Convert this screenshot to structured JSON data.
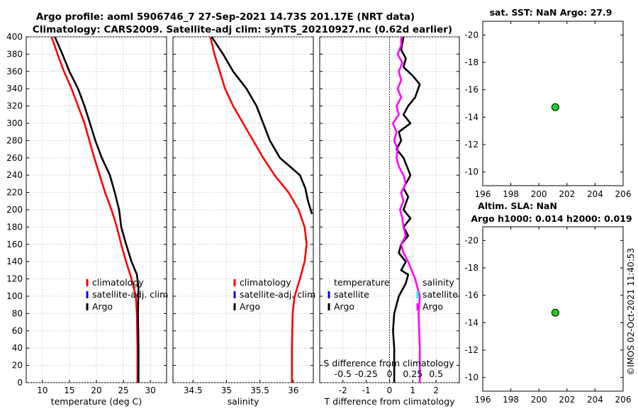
{
  "header": {
    "title_line1": "Argo profile: aoml 5906746_7 27-Sep-2021 14.73S 201.17E (NRT data)",
    "title_line2": "Climatology: CARS2009. Satellite-adj clim: synTS_20210927.nc (0.62d earlier)",
    "watermark": "©IMOS 02-Oct-2021 11:40:53"
  },
  "colors": {
    "argo": "#000000",
    "climatology": "#ff0000",
    "satellite": "#0000ff",
    "salinity_diff": "#ff00ff",
    "salinity_sat": "#00ffff",
    "marker": "#22cc22",
    "grid": "#c8c8c8"
  },
  "chart_data": [
    {
      "id": "temp",
      "type": "line",
      "xlabel": "temperature (deg C)",
      "ylabel": "",
      "xlim": [
        7,
        33
      ],
      "ylim": [
        400,
        0
      ],
      "xticks": [
        10,
        15,
        20,
        25,
        30
      ],
      "yticks": [
        0,
        20,
        40,
        60,
        80,
        100,
        120,
        140,
        160,
        180,
        200,
        220,
        240,
        260,
        280,
        300,
        320,
        340,
        360,
        380,
        400
      ],
      "show_y_labels": true,
      "legend": [
        {
          "label": "climatology",
          "color": "#ff0000"
        },
        {
          "label": "satellite-adj. clim",
          "color": "#0000ff"
        },
        {
          "label": "Argo",
          "color": "#000000"
        }
      ],
      "series": [
        {
          "name": "climatology",
          "color": "#ff0000",
          "points": [
            [
              27.6,
              0
            ],
            [
              27.6,
              40
            ],
            [
              27.5,
              80
            ],
            [
              27.3,
              100
            ],
            [
              26.5,
              120
            ],
            [
              25.5,
              140
            ],
            [
              24.6,
              160
            ],
            [
              23.8,
              180
            ],
            [
              22.8,
              200
            ],
            [
              21.6,
              220
            ],
            [
              20.6,
              240
            ],
            [
              19.6,
              260
            ],
            [
              18.7,
              280
            ],
            [
              17.8,
              300
            ],
            [
              16.6,
              320
            ],
            [
              15.4,
              340
            ],
            [
              14.0,
              360
            ],
            [
              12.8,
              380
            ],
            [
              11.7,
              400
            ]
          ]
        },
        {
          "name": "Argo",
          "color": "#000000",
          "points": [
            [
              27.8,
              0
            ],
            [
              27.8,
              40
            ],
            [
              27.7,
              80
            ],
            [
              27.8,
              110
            ],
            [
              27.5,
              125
            ],
            [
              26.5,
              140
            ],
            [
              25.5,
              160
            ],
            [
              24.6,
              180
            ],
            [
              24.2,
              200
            ],
            [
              23.4,
              220
            ],
            [
              22.5,
              240
            ],
            [
              21.0,
              260
            ],
            [
              19.8,
              280
            ],
            [
              18.8,
              300
            ],
            [
              17.8,
              320
            ],
            [
              16.6,
              340
            ],
            [
              15.0,
              360
            ],
            [
              13.7,
              380
            ],
            [
              12.3,
              400
            ]
          ]
        }
      ]
    },
    {
      "id": "sal",
      "type": "line",
      "xlabel": "salinity",
      "ylabel": "",
      "xlim": [
        34.2,
        36.3
      ],
      "ylim": [
        400,
        0
      ],
      "xticks": [
        34.5,
        35,
        35.5,
        36
      ],
      "xtick_labels": [
        "34.5",
        "35",
        "35.5",
        "36"
      ],
      "yticks": [
        0,
        20,
        40,
        60,
        80,
        100,
        120,
        140,
        160,
        180,
        200,
        220,
        240,
        260,
        280,
        300,
        320,
        340,
        360,
        380,
        400
      ],
      "show_y_labels": false,
      "legend": [
        {
          "label": "climatology",
          "color": "#ff0000"
        },
        {
          "label": "satellite-adj. clim",
          "color": "#0000ff"
        },
        {
          "label": "Argo",
          "color": "#000000"
        }
      ],
      "series": [
        {
          "name": "climatology",
          "color": "#ff0000",
          "points": [
            [
              35.98,
              0
            ],
            [
              35.98,
              40
            ],
            [
              35.99,
              80
            ],
            [
              36.02,
              100
            ],
            [
              36.1,
              120
            ],
            [
              36.17,
              140
            ],
            [
              36.2,
              160
            ],
            [
              36.17,
              180
            ],
            [
              36.08,
              200
            ],
            [
              35.93,
              220
            ],
            [
              35.72,
              240
            ],
            [
              35.55,
              260
            ],
            [
              35.4,
              280
            ],
            [
              35.25,
              300
            ],
            [
              35.1,
              320
            ],
            [
              34.98,
              340
            ],
            [
              34.9,
              360
            ],
            [
              34.82,
              380
            ],
            [
              34.76,
              400
            ]
          ]
        },
        {
          "name": "Argo",
          "color": "#000000",
          "points": [
            [
              36.28,
              195
            ],
            [
              36.22,
              210
            ],
            [
              36.18,
              225
            ],
            [
              36.1,
              240
            ],
            [
              35.95,
              250
            ],
            [
              35.8,
              260
            ],
            [
              35.65,
              280
            ],
            [
              35.55,
              300
            ],
            [
              35.45,
              320
            ],
            [
              35.3,
              340
            ],
            [
              35.1,
              360
            ],
            [
              34.95,
              380
            ],
            [
              34.78,
              400
            ]
          ]
        }
      ]
    },
    {
      "id": "diff",
      "type": "line",
      "xlabel": "T difference from climatology",
      "ylabel": "",
      "xlim": [
        -3,
        3
      ],
      "ylim": [
        400,
        0
      ],
      "xticks": [
        -2,
        -1,
        0,
        1,
        2
      ],
      "xtick_labels": [
        "-2",
        "-1",
        "0",
        "1",
        "2"
      ],
      "yticks": [
        0,
        20,
        40,
        60,
        80,
        100,
        120,
        140,
        160,
        180,
        200,
        220,
        240,
        260,
        280,
        300,
        320,
        340,
        360,
        380,
        400
      ],
      "show_y_labels": false,
      "secondary_label": "S difference from climatology",
      "secondary_ticks": [
        {
          "x": -2,
          "label": "-0.5"
        },
        {
          "x": -1,
          "label": "-0.25"
        },
        {
          "x": 0,
          "label": "0"
        },
        {
          "x": 1,
          "label": "0.25"
        },
        {
          "x": 2,
          "label": "0.5"
        }
      ],
      "legend": [
        {
          "label": "temperature",
          "color": "none"
        },
        {
          "label": "satellite",
          "color": "#0000ff"
        },
        {
          "label": "Argo",
          "color": "#000000"
        }
      ],
      "legend2": [
        {
          "label": "salinity",
          "color": "none"
        },
        {
          "label": "satellite",
          "color": "#00ffff"
        },
        {
          "label": "Argo",
          "color": "#ff00ff"
        }
      ],
      "series": [
        {
          "name": "T Argo",
          "color": "#000000",
          "points": [
            [
              0.2,
              0
            ],
            [
              0.2,
              40
            ],
            [
              0.15,
              60
            ],
            [
              0.2,
              80
            ],
            [
              0.4,
              100
            ],
            [
              0.7,
              115
            ],
            [
              0.8,
              125
            ],
            [
              0.5,
              130
            ],
            [
              0.7,
              140
            ],
            [
              0.4,
              150
            ],
            [
              0.5,
              160
            ],
            [
              0.8,
              170
            ],
            [
              0.6,
              180
            ],
            [
              0.9,
              190
            ],
            [
              0.6,
              200
            ],
            [
              0.8,
              215
            ],
            [
              0.6,
              225
            ],
            [
              0.9,
              240
            ],
            [
              0.6,
              260
            ],
            [
              0.3,
              270
            ],
            [
              0.5,
              280
            ],
            [
              0.4,
              290
            ],
            [
              0.9,
              300
            ],
            [
              0.6,
              310
            ],
            [
              0.8,
              320
            ],
            [
              1.1,
              330
            ],
            [
              1.3,
              345
            ],
            [
              1.0,
              355
            ],
            [
              0.6,
              365
            ],
            [
              0.7,
              375
            ],
            [
              0.5,
              385
            ],
            [
              0.6,
              400
            ]
          ]
        },
        {
          "name": "S Argo",
          "color": "#ff00ff",
          "points": [
            [
              1.3,
              0
            ],
            [
              1.3,
              40
            ],
            [
              1.25,
              80
            ],
            [
              1.3,
              100
            ],
            [
              1.2,
              110
            ],
            [
              1.1,
              120
            ],
            [
              0.8,
              140
            ],
            [
              0.6,
              150
            ],
            [
              0.5,
              160
            ],
            [
              0.7,
              170
            ],
            [
              0.6,
              180
            ],
            [
              0.55,
              190
            ],
            [
              0.45,
              200
            ],
            [
              0.6,
              210
            ],
            [
              0.5,
              220
            ],
            [
              0.7,
              230
            ],
            [
              0.6,
              240
            ],
            [
              0.4,
              250
            ],
            [
              0.3,
              260
            ],
            [
              0.35,
              270
            ],
            [
              0.2,
              280
            ],
            [
              0.3,
              290
            ],
            [
              0.15,
              300
            ],
            [
              0.4,
              310
            ],
            [
              0.3,
              320
            ],
            [
              0.5,
              330
            ],
            [
              0.35,
              340
            ],
            [
              0.5,
              350
            ],
            [
              0.4,
              360
            ],
            [
              0.55,
              370
            ],
            [
              0.35,
              380
            ],
            [
              0.5,
              390
            ],
            [
              0.5,
              400
            ]
          ]
        }
      ]
    },
    {
      "id": "sst",
      "type": "scatter",
      "title": "sat. SST: NaN Argo: 27.9",
      "xlim": [
        196,
        206
      ],
      "ylim": [
        -21,
        -9
      ],
      "xticks": [
        196,
        198,
        200,
        202,
        204,
        206
      ],
      "yticks": [
        -10,
        -12,
        -14,
        -16,
        -18,
        -20
      ],
      "points": [
        {
          "x": 201.17,
          "y": -14.73
        }
      ]
    },
    {
      "id": "sla",
      "type": "scatter",
      "title": "Altim. SLA: NaN",
      "subtitle": "Argo h1000: 0.014 h2000: 0.019",
      "xlim": [
        196,
        206
      ],
      "ylim": [
        -21,
        -9
      ],
      "xticks": [
        196,
        198,
        200,
        202,
        204,
        206
      ],
      "yticks": [
        -10,
        -12,
        -14,
        -16,
        -18,
        -20
      ],
      "points": [
        {
          "x": 201.17,
          "y": -14.73
        }
      ]
    }
  ]
}
